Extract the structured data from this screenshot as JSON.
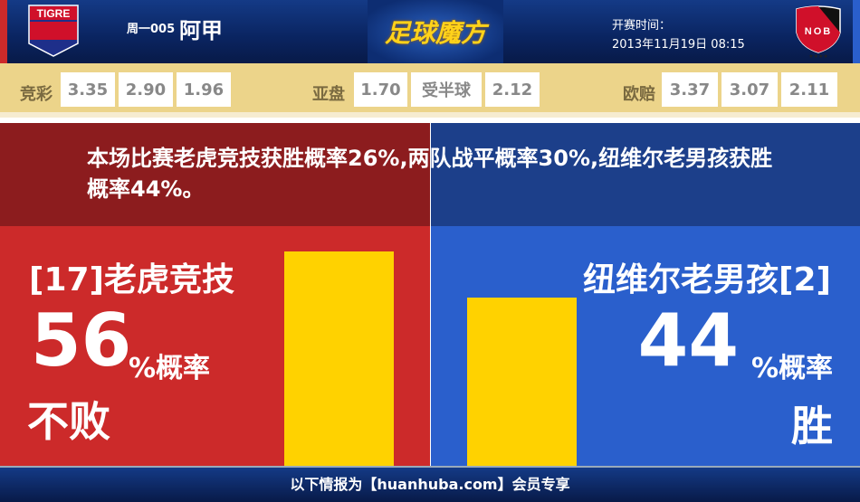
{
  "header": {
    "home_logo_text": "TIGRE",
    "away_logo_text": "NOB",
    "match_code": "周一005",
    "league": "阿甲",
    "brand": "足球魔方",
    "kickoff_label": "开赛时间：",
    "kickoff_time": "2013年11月19日 08:15"
  },
  "odds": {
    "jingcai": {
      "label": "竞彩",
      "values": [
        "3.35",
        "2.90",
        "1.96"
      ]
    },
    "asian": {
      "label": "亚盘",
      "values": [
        "1.70",
        "受半球",
        "2.12"
      ]
    },
    "euro": {
      "label": "欧赔",
      "values": [
        "3.37",
        "3.07",
        "2.11"
      ]
    }
  },
  "message": "本场比赛老虎竞技获胜概率26%,两队战平概率30%,纽维尔老男孩获胜概率44%。",
  "home": {
    "name": "[17]老虎竞技",
    "percent": "56",
    "percent_suffix": "%概率",
    "outcome": "不败",
    "probability": 56,
    "color": "#cc2a2a"
  },
  "away": {
    "name": "纽维尔老男孩[2]",
    "percent": "44",
    "percent_suffix": "%概率",
    "outcome": "胜",
    "probability": 44,
    "color": "#2a5fcc"
  },
  "bar_color": "#ffd200",
  "footer": "以下情报为【huanhuba.com】会员专享"
}
